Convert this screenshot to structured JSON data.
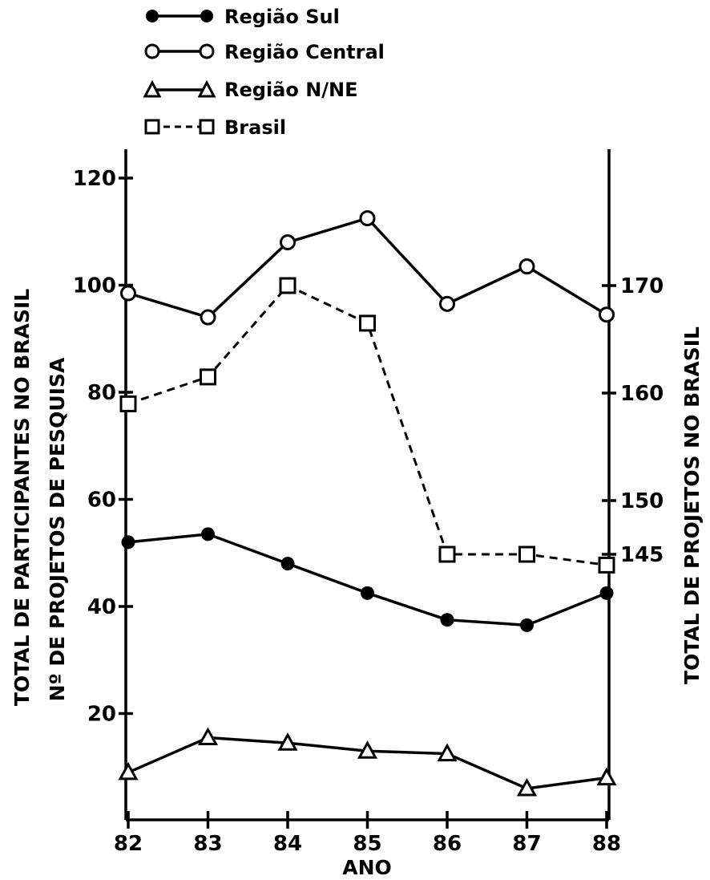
{
  "chart_data": {
    "type": "line",
    "xlabel": "ANO",
    "x": [
      82,
      83,
      84,
      85,
      86,
      87,
      88
    ],
    "left_axis": {
      "labels": [
        "TOTAL DE PARTICIPANTES NO BRASIL",
        "Nº DE PROJETOS DE PESQUISA"
      ],
      "ylim": [
        0,
        120
      ],
      "ticks": [
        20,
        40,
        60,
        80,
        100,
        120
      ]
    },
    "right_axis": {
      "label": "TOTAL DE PROJETOS NO BRASIL",
      "ticks": [
        145,
        150,
        160,
        170
      ]
    },
    "series": [
      {
        "name": "Região Sul",
        "axis": "left",
        "marker": "filled-circle",
        "line": "solid",
        "values": [
          52,
          53.5,
          48,
          42.5,
          37.5,
          36.5,
          42.5
        ]
      },
      {
        "name": "Região Central",
        "axis": "left",
        "marker": "open-circle",
        "line": "solid",
        "values": [
          98.5,
          94,
          108,
          112.5,
          96.5,
          103.5,
          94.5
        ]
      },
      {
        "name": "Região N/NE",
        "axis": "left",
        "marker": "open-triangle",
        "line": "solid",
        "values": [
          9,
          15.5,
          14.5,
          13,
          12.5,
          6,
          8
        ]
      },
      {
        "name": "Brasil",
        "axis": "right",
        "marker": "open-square",
        "line": "dashed",
        "values": [
          159,
          161.5,
          170,
          166.5,
          145,
          145,
          144
        ]
      }
    ],
    "legend_position": "top-left",
    "grid": false
  }
}
